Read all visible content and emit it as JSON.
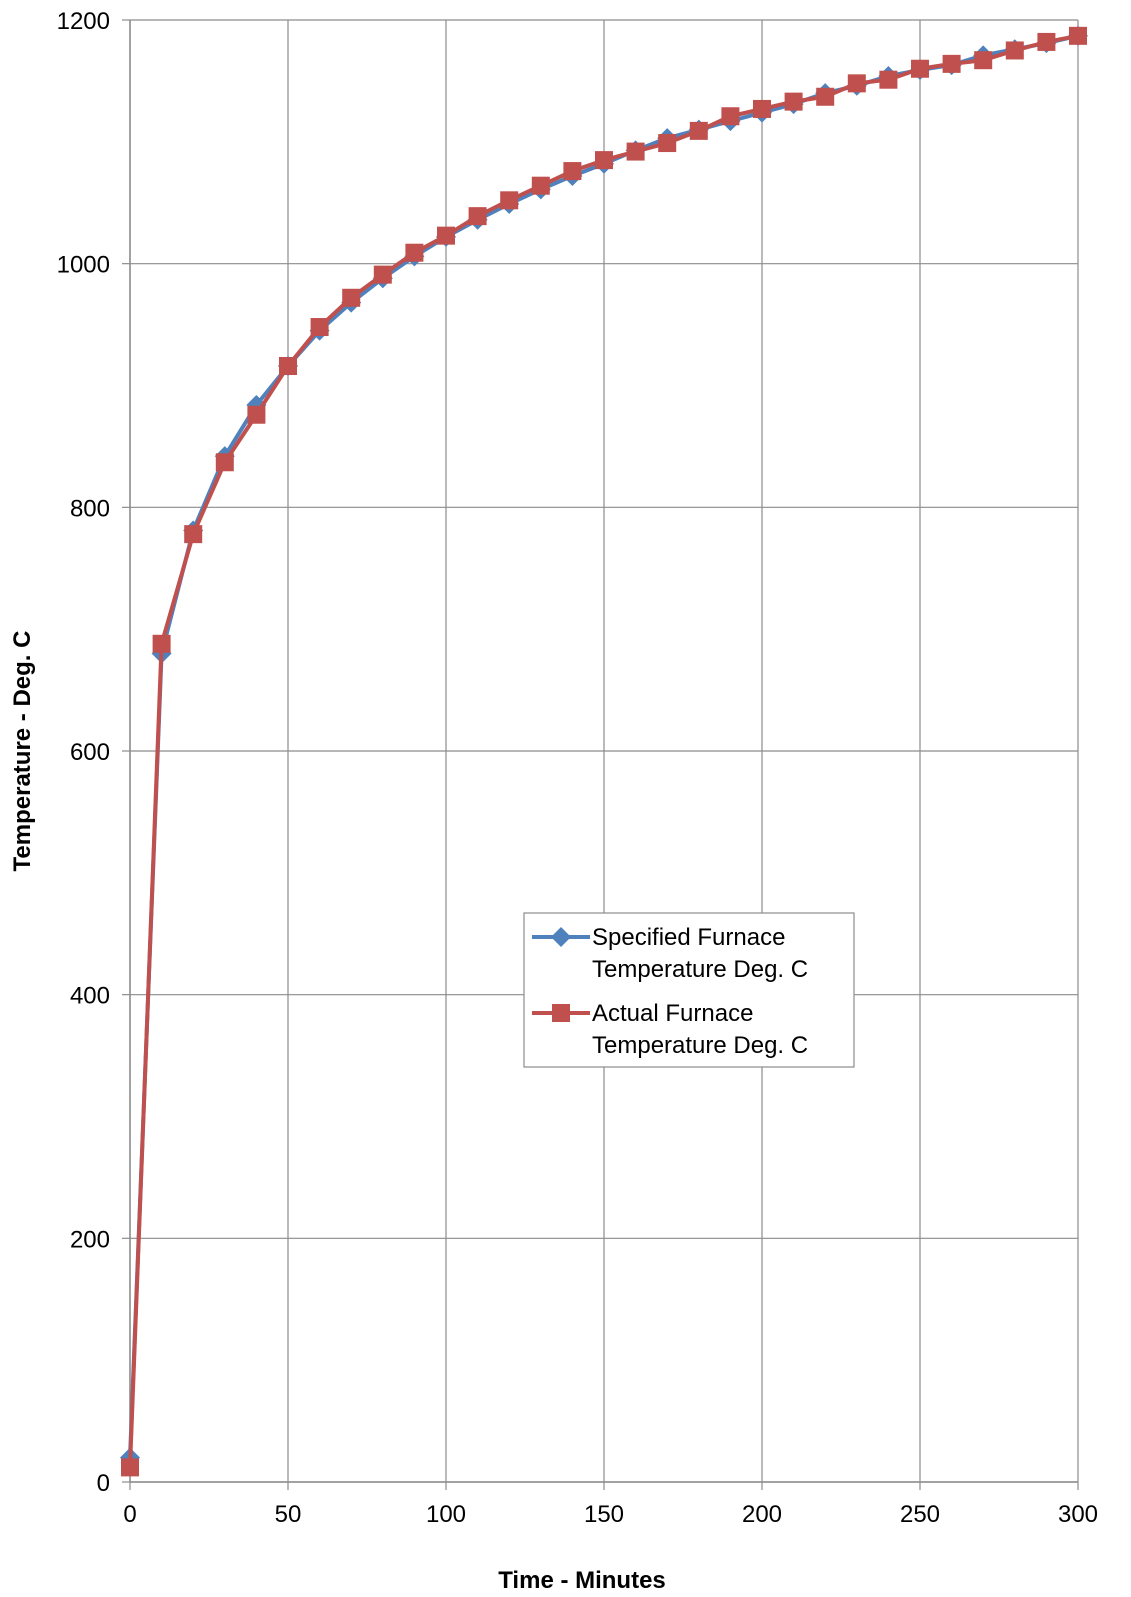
{
  "chart_data": {
    "type": "line",
    "title": "",
    "xlabel": "Time - Minutes",
    "ylabel": "Temperature - Deg. C",
    "xlim": [
      0,
      300
    ],
    "ylim": [
      0,
      1200
    ],
    "x_ticks": [
      "0",
      "50",
      "100",
      "150",
      "200",
      "250",
      "300"
    ],
    "y_ticks": [
      "0",
      "200",
      "400",
      "600",
      "800",
      "1000",
      "1200"
    ],
    "grid": true,
    "legend_position": "center-right",
    "x": [
      0,
      10,
      20,
      30,
      40,
      50,
      60,
      70,
      80,
      90,
      100,
      110,
      120,
      130,
      140,
      150,
      160,
      170,
      180,
      190,
      200,
      210,
      220,
      230,
      240,
      250,
      260,
      270,
      280,
      290,
      300
    ],
    "series": [
      {
        "name": "Specified Furnace Temperature Deg. C",
        "legend_lines": [
          "Specified Furnace",
          "Temperature Deg. C"
        ],
        "color": "#4f81bd",
        "marker": "diamond",
        "values": [
          20,
          680,
          781,
          842,
          884,
          916,
          945,
          968,
          988,
          1006,
          1022,
          1036,
          1049,
          1061,
          1072,
          1082,
          1093,
          1103,
          1110,
          1117,
          1124,
          1131,
          1140,
          1146,
          1154,
          1159,
          1163,
          1171,
          1176,
          1181,
          1187
        ]
      },
      {
        "name": "Actual Furnace Temperature Deg. C",
        "legend_lines": [
          "Actual Furnace",
          "Temperature Deg. C"
        ],
        "color": "#c0504d",
        "marker": "square",
        "values": [
          12,
          688,
          778,
          837,
          876,
          916,
          948,
          972,
          991,
          1009,
          1023,
          1039,
          1052,
          1064,
          1076,
          1085,
          1092,
          1099,
          1109,
          1121,
          1127,
          1133,
          1137,
          1148,
          1151,
          1160,
          1164,
          1167,
          1175,
          1182,
          1187
        ]
      }
    ]
  }
}
